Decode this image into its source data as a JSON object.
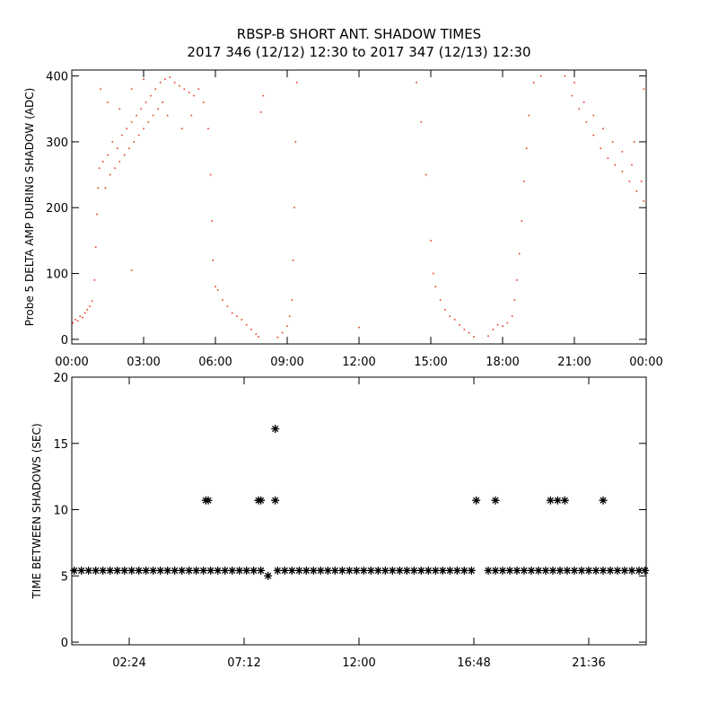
{
  "chart_data": [
    {
      "type": "scatter",
      "title": "RBSP-B SHORT ANT. SHADOW TIMES",
      "subtitle": "2017 346 (12/12) 12:30 to 2017 347 (12/13) 12:30",
      "ylabel": "Probe 5 DELTA AMP DURING SHADOW (ADC)",
      "marker": "dot",
      "xlim": [
        0,
        24
      ],
      "ylim": [
        -7,
        409
      ],
      "xticks": [
        {
          "value": 0,
          "label": "00:00"
        },
        {
          "value": 3,
          "label": "03:00"
        },
        {
          "value": 6,
          "label": "06:00"
        },
        {
          "value": 9,
          "label": "09:00"
        },
        {
          "value": 12,
          "label": "12:00"
        },
        {
          "value": 15,
          "label": "15:00"
        },
        {
          "value": 18,
          "label": "18:00"
        },
        {
          "value": 21,
          "label": "21:00"
        },
        {
          "value": 24,
          "label": "00:00"
        }
      ],
      "yticks": [
        0,
        100,
        200,
        300,
        400
      ],
      "series": [
        {
          "color": "#e8391f",
          "x": [
            0.05,
            0.15,
            0.25,
            0.35,
            0.45,
            0.55,
            0.65,
            0.75,
            0.85,
            0.95,
            1.0,
            1.05,
            1.1,
            1.15,
            1.3,
            1.5,
            1.7,
            1.9,
            2.1,
            2.3,
            2.5,
            2.7,
            2.9,
            3.1,
            3.3,
            3.5,
            3.7,
            3.9,
            4.1,
            4.3,
            4.5,
            4.7,
            4.9,
            5.1,
            1.4,
            1.6,
            1.8,
            2.0,
            2.2,
            2.4,
            2.6,
            2.8,
            3.0,
            3.2,
            3.4,
            3.6,
            3.8,
            1.2,
            1.5,
            2.0,
            2.5,
            3.0,
            4.0,
            4.6,
            5.0,
            5.3,
            5.5,
            5.7,
            5.8,
            5.85,
            5.9,
            6.0,
            6.1,
            6.3,
            6.5,
            6.7,
            6.9,
            7.1,
            7.3,
            7.5,
            7.7,
            7.8,
            8.6,
            8.8,
            9.0,
            9.1,
            9.2,
            9.25,
            9.3,
            9.35,
            9.4,
            14.4,
            14.6,
            14.8,
            15.0,
            15.1,
            15.2,
            15.4,
            15.6,
            15.8,
            16.0,
            16.2,
            16.4,
            16.6,
            16.8,
            17.4,
            17.6,
            17.8,
            18.0,
            18.2,
            18.4,
            18.5,
            18.6,
            18.7,
            18.8,
            18.9,
            19.0,
            19.1,
            19.3,
            19.6,
            20.6,
            20.9,
            21.2,
            21.5,
            21.8,
            22.1,
            22.4,
            22.7,
            23.0,
            23.3,
            23.6,
            23.9,
            21.0,
            21.4,
            21.8,
            22.2,
            22.6,
            23.0,
            23.4,
            23.8,
            23.5,
            23.9,
            2.5,
            12.0,
            8.0,
            7.9
          ],
          "values": [
            25,
            30,
            28,
            35,
            33,
            40,
            45,
            50,
            58,
            90,
            140,
            190,
            230,
            260,
            270,
            280,
            300,
            290,
            310,
            320,
            330,
            340,
            350,
            360,
            370,
            380,
            390,
            395,
            398,
            390,
            385,
            380,
            375,
            370,
            230,
            250,
            260,
            270,
            280,
            290,
            300,
            310,
            320,
            330,
            340,
            350,
            360,
            380,
            360,
            350,
            380,
            395,
            340,
            320,
            340,
            380,
            360,
            320,
            250,
            180,
            120,
            80,
            75,
            60,
            50,
            40,
            35,
            30,
            22,
            15,
            8,
            4,
            3,
            10,
            20,
            35,
            60,
            120,
            200,
            300,
            390,
            390,
            330,
            250,
            150,
            100,
            80,
            60,
            45,
            35,
            30,
            22,
            15,
            10,
            4,
            5,
            15,
            22,
            20,
            25,
            35,
            60,
            90,
            130,
            180,
            240,
            290,
            340,
            390,
            400,
            400,
            370,
            350,
            330,
            310,
            290,
            275,
            265,
            255,
            240,
            225,
            210,
            390,
            360,
            340,
            320,
            300,
            285,
            265,
            240,
            300,
            380,
            105,
            18,
            370,
            345
          ]
        }
      ]
    },
    {
      "type": "scatter",
      "ylabel": "TIME BETWEEN SHADOWS (SEC)",
      "marker": "asterisk",
      "xlim": [
        0,
        24
      ],
      "ylim": [
        -0.2,
        20
      ],
      "xticks": [
        {
          "value": 2.4,
          "label": "02:24"
        },
        {
          "value": 7.2,
          "label": "07:12"
        },
        {
          "value": 12,
          "label": "12:00"
        },
        {
          "value": 16.8,
          "label": "16:48"
        },
        {
          "value": 21.6,
          "label": "21:36"
        }
      ],
      "yticks": [
        0,
        5,
        10,
        15,
        20
      ],
      "series": [
        {
          "color": "#000000",
          "x": [
            0.1,
            0.4,
            0.7,
            1.0,
            1.3,
            1.6,
            1.9,
            2.2,
            2.5,
            2.8,
            3.1,
            3.4,
            3.7,
            4.0,
            4.3,
            4.6,
            4.9,
            5.2,
            5.5,
            5.8,
            6.1,
            6.4,
            6.7,
            7.0,
            7.3,
            7.6,
            7.9,
            8.6,
            8.9,
            9.2,
            9.5,
            9.8,
            10.1,
            10.4,
            10.7,
            11.0,
            11.3,
            11.6,
            11.9,
            12.2,
            12.5,
            12.8,
            13.1,
            13.4,
            13.7,
            14.0,
            14.3,
            14.6,
            14.9,
            15.2,
            15.5,
            15.8,
            16.1,
            16.4,
            16.7,
            17.4,
            17.7,
            18.0,
            18.3,
            18.6,
            18.9,
            19.2,
            19.5,
            19.8,
            20.1,
            20.4,
            20.7,
            21.0,
            21.3,
            21.6,
            21.9,
            22.2,
            22.5,
            22.8,
            23.1,
            23.4,
            23.7,
            23.95,
            8.2,
            5.6,
            5.7,
            7.8,
            7.9,
            8.5,
            8.5,
            16.9,
            17.7,
            20.0,
            20.3,
            20.6,
            22.2
          ],
          "values": [
            5.4,
            5.4,
            5.4,
            5.4,
            5.4,
            5.4,
            5.4,
            5.4,
            5.4,
            5.4,
            5.4,
            5.4,
            5.4,
            5.4,
            5.4,
            5.4,
            5.4,
            5.4,
            5.4,
            5.4,
            5.4,
            5.4,
            5.4,
            5.4,
            5.4,
            5.4,
            5.4,
            5.4,
            5.4,
            5.4,
            5.4,
            5.4,
            5.4,
            5.4,
            5.4,
            5.4,
            5.4,
            5.4,
            5.4,
            5.4,
            5.4,
            5.4,
            5.4,
            5.4,
            5.4,
            5.4,
            5.4,
            5.4,
            5.4,
            5.4,
            5.4,
            5.4,
            5.4,
            5.4,
            5.4,
            5.4,
            5.4,
            5.4,
            5.4,
            5.4,
            5.4,
            5.4,
            5.4,
            5.4,
            5.4,
            5.4,
            5.4,
            5.4,
            5.4,
            5.4,
            5.4,
            5.4,
            5.4,
            5.4,
            5.4,
            5.4,
            5.4,
            5.4,
            5.0,
            10.7,
            10.7,
            10.7,
            10.7,
            16.1,
            10.7,
            10.7,
            10.7,
            10.7,
            10.7,
            10.7,
            10.7
          ]
        }
      ]
    }
  ]
}
